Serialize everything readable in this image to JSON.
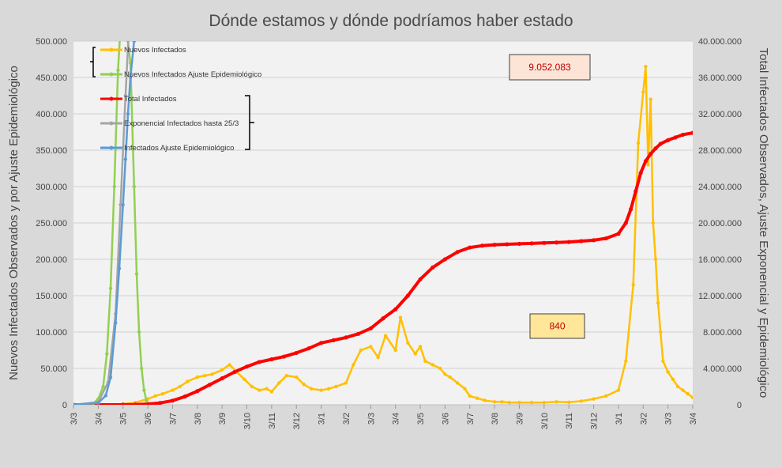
{
  "chart_data": {
    "type": "line",
    "title": "Dónde estamos y dónde podríamos haber estado",
    "ylabel": "Nuevos Infectados Observados y por Ajuste Epidemiológico",
    "y2label": "Total Infectados Observados, Ajuste Exponencial y Epidemiológico",
    "ylim": [
      0,
      500000
    ],
    "y2lim": [
      0,
      40000000
    ],
    "yticks": [
      0,
      50000,
      100000,
      150000,
      200000,
      250000,
      300000,
      350000,
      400000,
      450000,
      500000
    ],
    "y2ticks": [
      0,
      4000000,
      8000000,
      12000000,
      16000000,
      20000000,
      24000000,
      28000000,
      32000000,
      36000000,
      40000000
    ],
    "x_tick_labels": [
      "3/3",
      "3/4",
      "3/5",
      "3/6",
      "3/7",
      "3/8",
      "3/9",
      "3/10",
      "3/11",
      "3/12",
      "3/1",
      "3/2",
      "3/3",
      "3/4",
      "3/5",
      "3/6",
      "3/7",
      "3/8",
      "3/9",
      "3/10",
      "3/11",
      "3/12",
      "3/1",
      "3/2",
      "3/3",
      "3/4"
    ],
    "x_unit": "months",
    "grid": true,
    "legend_position": "top-left",
    "legend": [
      {
        "name": "Nuevos Infectados",
        "color": "#ffc000",
        "axis": "left"
      },
      {
        "name": "Nuevos Infectados Ajuste Epidemiológico",
        "color": "#92d050",
        "axis": "left"
      },
      {
        "name": "Total Infectados",
        "color": "#ff0000",
        "axis": "right"
      },
      {
        "name": "Exponencial Infectados hasta 25/3",
        "color": "#a5a5a5",
        "axis": "right"
      },
      {
        "name": "Infectados Ajuste Epidemiológico",
        "color": "#5b9bd5",
        "axis": "right"
      }
    ],
    "series": [
      {
        "name": "Nuevos Infectados",
        "axis": "left",
        "color": "#ffc000",
        "x": [
          0,
          1.5,
          2,
          2.5,
          3,
          3.3,
          3.6,
          4,
          4.3,
          4.6,
          5,
          5.3,
          5.6,
          6,
          6.3,
          6.6,
          6.9,
          7.2,
          7.5,
          7.8,
          8,
          8.3,
          8.6,
          9,
          9.3,
          9.6,
          10,
          10.3,
          10.6,
          11,
          11.3,
          11.6,
          12,
          12.3,
          12.6,
          13,
          13.2,
          13.5,
          13.8,
          14,
          14.2,
          14.5,
          14.8,
          15,
          15.2,
          15.5,
          15.8,
          16,
          16.3,
          16.6,
          17,
          17.3,
          17.6,
          18,
          18.5,
          19,
          19.5,
          20,
          20.5,
          21,
          21.5,
          22,
          22.3,
          22.6,
          22.8,
          23,
          23.1,
          23.2,
          23.3,
          23.4,
          23.5,
          23.6,
          23.7,
          23.8,
          24,
          24.2,
          24.4,
          24.6,
          24.8,
          25,
          25.3,
          25.6,
          25.8,
          26
        ],
        "values": [
          0,
          100,
          1000,
          3000,
          8000,
          12000,
          15000,
          20000,
          25000,
          32000,
          38000,
          40000,
          42000,
          48000,
          55000,
          45000,
          35000,
          25000,
          20000,
          22000,
          18000,
          30000,
          40000,
          38000,
          28000,
          22000,
          20000,
          22000,
          25000,
          30000,
          55000,
          75000,
          80000,
          65000,
          95000,
          75000,
          120000,
          85000,
          70000,
          80000,
          60000,
          55000,
          50000,
          42000,
          38000,
          30000,
          22000,
          12000,
          9000,
          6000,
          4000,
          4000,
          3000,
          3000,
          3000,
          3000,
          4000,
          3500,
          5000,
          8000,
          12000,
          20000,
          60000,
          165000,
          360000,
          430000,
          465000,
          330000,
          420000,
          250000,
          200000,
          140000,
          100000,
          60000,
          45000,
          35000,
          25000,
          20000,
          15000,
          10000,
          8000,
          5000,
          8000,
          6000
        ]
      },
      {
        "name": "Total Infectados",
        "axis": "right",
        "color": "#ff0000",
        "x": [
          0,
          2,
          2.5,
          3,
          3.5,
          4,
          4.5,
          5,
          5.5,
          6,
          6.5,
          7,
          7.5,
          8,
          8.5,
          9,
          9.5,
          10,
          10.5,
          11,
          11.5,
          12,
          12.5,
          13,
          13.5,
          14,
          14.5,
          15,
          15.5,
          16,
          16.5,
          17,
          17.5,
          18,
          18.5,
          19,
          19.5,
          20,
          20.5,
          21,
          21.5,
          22,
          22.3,
          22.5,
          22.7,
          22.9,
          23.1,
          23.3,
          23.5,
          23.7,
          24,
          24.3,
          24.6,
          25,
          25.5,
          26
        ],
        "values": [
          0,
          0,
          20000,
          80000,
          200000,
          450000,
          900000,
          1500000,
          2200000,
          2900000,
          3600000,
          4200000,
          4700000,
          5000000,
          5300000,
          5700000,
          6200000,
          6800000,
          7100000,
          7400000,
          7800000,
          8400000,
          9500000,
          10500000,
          12000000,
          13800000,
          15100000,
          16000000,
          16800000,
          17300000,
          17500000,
          17600000,
          17650000,
          17700000,
          17750000,
          17800000,
          17850000,
          17900000,
          18000000,
          18100000,
          18300000,
          18800000,
          20000000,
          21500000,
          23500000,
          25500000,
          26800000,
          27600000,
          28200000,
          28700000,
          29100000,
          29400000,
          29700000,
          29900000,
          30100000,
          30200000
        ]
      },
      {
        "name": "Nuevos Infectados Ajuste Epidemiológico",
        "axis": "left",
        "color": "#92d050",
        "x": [
          0,
          0.8,
          1.0,
          1.2,
          1.35,
          1.5,
          1.65,
          1.8,
          1.9,
          2.0,
          2.1,
          2.2,
          2.3,
          2.45,
          2.55,
          2.65,
          2.75,
          2.85,
          2.95
        ],
        "values": [
          0,
          2000,
          8000,
          25000,
          70000,
          160000,
          300000,
          460000,
          520000,
          560000,
          540000,
          500000,
          470000,
          300000,
          180000,
          100000,
          50000,
          20000,
          5000
        ]
      },
      {
        "name": "Exponencial Infectados hasta 25/3",
        "axis": "right",
        "color": "#a5a5a5",
        "x": [
          0,
          1.0,
          1.4,
          1.7,
          1.9,
          2.1,
          2.25
        ],
        "values": [
          0,
          300000,
          2500000,
          10000000,
          22000000,
          34000000,
          42000000
        ]
      },
      {
        "name": "Infectados Ajuste Epidemiológico",
        "axis": "right",
        "color": "#5b9bd5",
        "x": [
          0,
          1.0,
          1.3,
          1.5,
          1.7,
          1.85,
          2.0,
          2.1,
          2.2,
          2.3,
          2.45
        ],
        "values": [
          0,
          200000,
          1000000,
          3000000,
          9000000,
          15000000,
          22000000,
          27000000,
          32000000,
          36000000,
          40000000
        ]
      }
    ],
    "annotations": [
      {
        "text": "9.052.083",
        "bg": "#fce4d6",
        "color": "#c00000"
      },
      {
        "text": "840",
        "bg": "#ffe699",
        "color": "#c00000"
      }
    ]
  }
}
